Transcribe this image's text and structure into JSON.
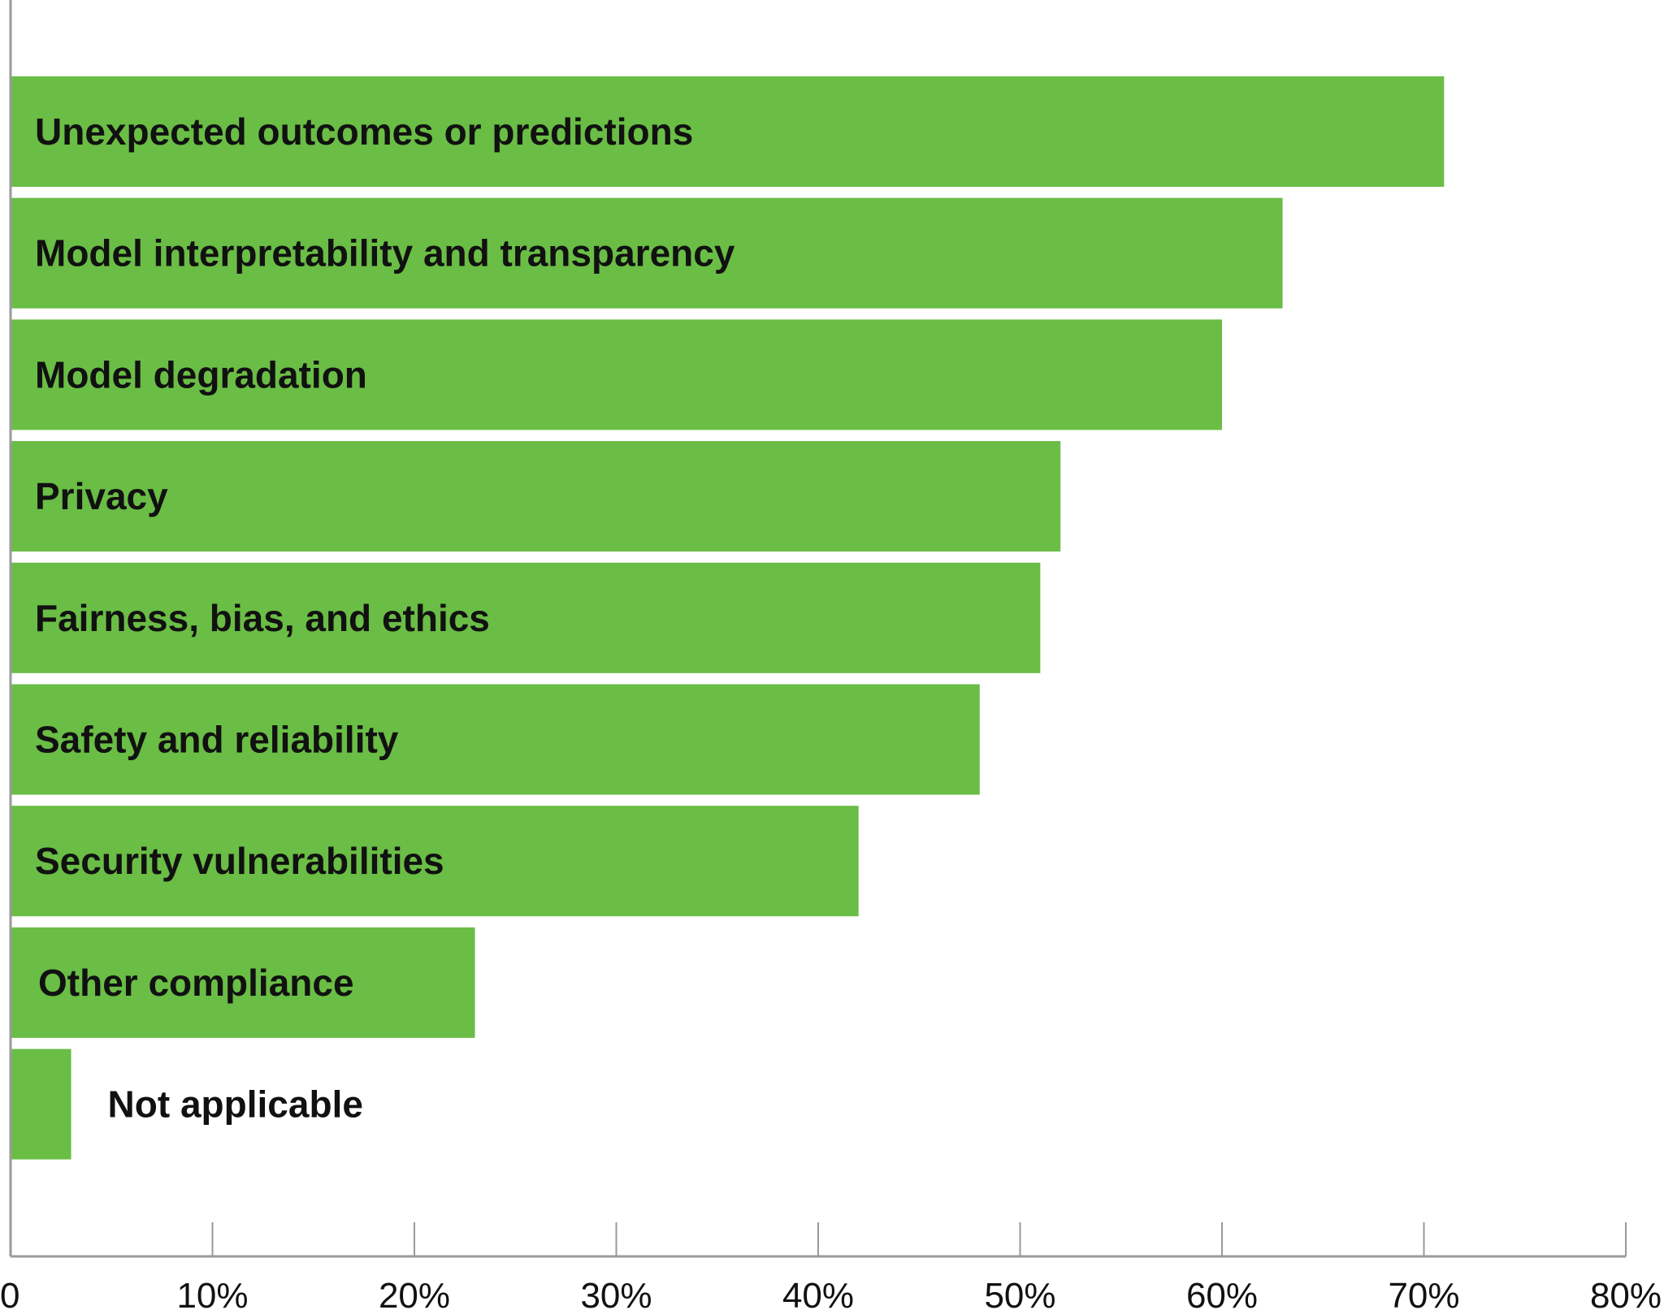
{
  "chart_data": {
    "type": "bar",
    "orientation": "horizontal",
    "categories": [
      "Unexpected outcomes or predictions",
      "Model interpretability and transparency",
      "Model degradation",
      "Privacy",
      "Fairness, bias, and ethics",
      "Safety and reliability",
      "Security vulnerabilities",
      "Other compliance",
      "Not applicable"
    ],
    "values": [
      71,
      63,
      60,
      52,
      51,
      48,
      42,
      23,
      3
    ],
    "unit": "%",
    "xlim": [
      0,
      80
    ],
    "xticks": [
      0,
      10,
      20,
      30,
      40,
      50,
      60,
      70,
      80
    ],
    "xtick_labels": [
      "0",
      "10%",
      "20%",
      "30%",
      "40%",
      "50%",
      "60%",
      "70%",
      "80%"
    ],
    "title": "",
    "xlabel": "",
    "ylabel": "",
    "grid": false,
    "legend": "none",
    "bar_color": "#6abd45",
    "axis_color": "#9a9a9a"
  }
}
